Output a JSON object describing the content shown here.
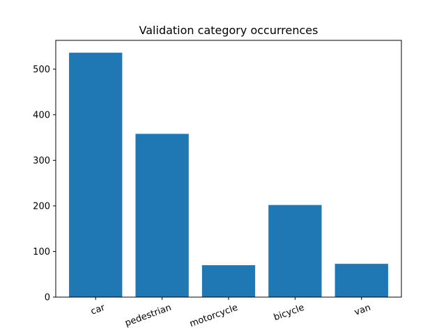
{
  "chart_data": {
    "type": "bar",
    "title": "Validation category occurrences",
    "xlabel": "",
    "ylabel": "",
    "categories": [
      "car",
      "pedestrian",
      "motorcycle",
      "bicycle",
      "van"
    ],
    "values": [
      536,
      358,
      70,
      202,
      73
    ],
    "ylim": [
      0,
      563
    ],
    "yticks": [
      0,
      100,
      200,
      300,
      400,
      500
    ],
    "bar_color": "#1f77b4",
    "grid": false,
    "legend": "none",
    "xtick_rotation": "rotated about 20 degrees counter-clockwise"
  }
}
